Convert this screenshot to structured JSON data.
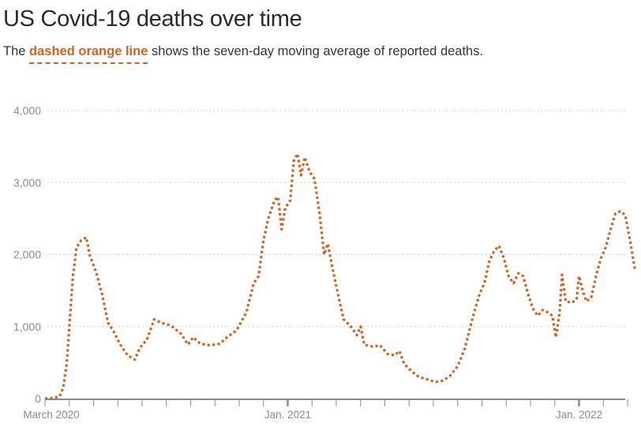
{
  "header": {
    "title": "US Covid-19 deaths over time",
    "subtitle_pre": "The ",
    "subtitle_highlight": "dashed orange line",
    "subtitle_post": " shows the seven-day moving average of reported deaths."
  },
  "colors": {
    "line": "#cc6424",
    "grid": "#cfcfcf",
    "axis": "#8a8a8a",
    "text": "#2a2a2a"
  },
  "chart_data": {
    "type": "line",
    "title": "US Covid-19 deaths over time",
    "subtitle": "The dashed orange line shows the seven-day moving average of reported deaths.",
    "xlabel": "",
    "ylabel": "",
    "ylim": [
      0,
      4000
    ],
    "yticks": [
      0,
      1000,
      2000,
      3000,
      4000
    ],
    "ytick_labels": [
      "0",
      "1,000",
      "2,000",
      "3,000",
      "4,000"
    ],
    "xtick_labels": [
      {
        "label": "March 2020",
        "month_index": 0
      },
      {
        "label": "Jan. 2021",
        "month_index": 10
      },
      {
        "label": "Jan. 2022",
        "month_index": 22
      }
    ],
    "x_minor_ticks": "monthly, March 2020 – Feb. 2022",
    "grid": {
      "horizontal": true,
      "style": "dotted"
    },
    "legend": "none (described in subtitle)",
    "series": [
      {
        "name": "Seven-day moving average of reported deaths",
        "style": "dashed",
        "color": "#cc6424",
        "points": [
          {
            "m": 0.0,
            "v": 0
          },
          {
            "m": 0.3,
            "v": 5
          },
          {
            "m": 0.6,
            "v": 30
          },
          {
            "m": 0.75,
            "v": 150
          },
          {
            "m": 0.9,
            "v": 500
          },
          {
            "m": 1.0,
            "v": 1000
          },
          {
            "m": 1.15,
            "v": 1700
          },
          {
            "m": 1.3,
            "v": 2100
          },
          {
            "m": 1.5,
            "v": 2200
          },
          {
            "m": 1.7,
            "v": 2240
          },
          {
            "m": 1.85,
            "v": 1980
          },
          {
            "m": 2.1,
            "v": 1760
          },
          {
            "m": 2.35,
            "v": 1450
          },
          {
            "m": 2.6,
            "v": 1050
          },
          {
            "m": 2.8,
            "v": 950
          },
          {
            "m": 3.1,
            "v": 750
          },
          {
            "m": 3.4,
            "v": 600
          },
          {
            "m": 3.7,
            "v": 540
          },
          {
            "m": 3.9,
            "v": 700
          },
          {
            "m": 4.2,
            "v": 820
          },
          {
            "m": 4.5,
            "v": 1100
          },
          {
            "m": 4.8,
            "v": 1050
          },
          {
            "m": 5.2,
            "v": 1010
          },
          {
            "m": 5.6,
            "v": 900
          },
          {
            "m": 5.9,
            "v": 750
          },
          {
            "m": 6.1,
            "v": 850
          },
          {
            "m": 6.4,
            "v": 760
          },
          {
            "m": 6.8,
            "v": 740
          },
          {
            "m": 7.2,
            "v": 760
          },
          {
            "m": 7.5,
            "v": 850
          },
          {
            "m": 7.9,
            "v": 950
          },
          {
            "m": 8.3,
            "v": 1200
          },
          {
            "m": 8.6,
            "v": 1600
          },
          {
            "m": 8.8,
            "v": 1700
          },
          {
            "m": 9.0,
            "v": 2200
          },
          {
            "m": 9.2,
            "v": 2500
          },
          {
            "m": 9.45,
            "v": 2750
          },
          {
            "m": 9.6,
            "v": 2800
          },
          {
            "m": 9.75,
            "v": 2350
          },
          {
            "m": 9.9,
            "v": 2650
          },
          {
            "m": 10.1,
            "v": 2750
          },
          {
            "m": 10.25,
            "v": 3300
          },
          {
            "m": 10.4,
            "v": 3400
          },
          {
            "m": 10.55,
            "v": 3100
          },
          {
            "m": 10.7,
            "v": 3350
          },
          {
            "m": 10.9,
            "v": 3150
          },
          {
            "m": 11.1,
            "v": 3050
          },
          {
            "m": 11.3,
            "v": 2600
          },
          {
            "m": 11.5,
            "v": 2000
          },
          {
            "m": 11.65,
            "v": 2150
          },
          {
            "m": 11.85,
            "v": 1800
          },
          {
            "m": 12.1,
            "v": 1400
          },
          {
            "m": 12.3,
            "v": 1100
          },
          {
            "m": 12.6,
            "v": 1000
          },
          {
            "m": 12.85,
            "v": 880
          },
          {
            "m": 13.0,
            "v": 1000
          },
          {
            "m": 13.15,
            "v": 750
          },
          {
            "m": 13.5,
            "v": 720
          },
          {
            "m": 13.8,
            "v": 740
          },
          {
            "m": 14.1,
            "v": 620
          },
          {
            "m": 14.4,
            "v": 600
          },
          {
            "m": 14.6,
            "v": 660
          },
          {
            "m": 14.8,
            "v": 480
          },
          {
            "m": 15.1,
            "v": 380
          },
          {
            "m": 15.4,
            "v": 300
          },
          {
            "m": 15.8,
            "v": 260
          },
          {
            "m": 16.1,
            "v": 230
          },
          {
            "m": 16.4,
            "v": 250
          },
          {
            "m": 16.7,
            "v": 320
          },
          {
            "m": 17.0,
            "v": 450
          },
          {
            "m": 17.3,
            "v": 700
          },
          {
            "m": 17.6,
            "v": 1100
          },
          {
            "m": 17.9,
            "v": 1450
          },
          {
            "m": 18.1,
            "v": 1600
          },
          {
            "m": 18.3,
            "v": 1900
          },
          {
            "m": 18.5,
            "v": 2050
          },
          {
            "m": 18.7,
            "v": 2120
          },
          {
            "m": 18.9,
            "v": 1950
          },
          {
            "m": 19.1,
            "v": 1700
          },
          {
            "m": 19.3,
            "v": 1600
          },
          {
            "m": 19.5,
            "v": 1740
          },
          {
            "m": 19.7,
            "v": 1700
          },
          {
            "m": 19.9,
            "v": 1450
          },
          {
            "m": 20.1,
            "v": 1250
          },
          {
            "m": 20.3,
            "v": 1150
          },
          {
            "m": 20.5,
            "v": 1230
          },
          {
            "m": 20.7,
            "v": 1200
          },
          {
            "m": 20.9,
            "v": 1150
          },
          {
            "m": 21.05,
            "v": 850
          },
          {
            "m": 21.2,
            "v": 1200
          },
          {
            "m": 21.3,
            "v": 1720
          },
          {
            "m": 21.45,
            "v": 1350
          },
          {
            "m": 21.7,
            "v": 1330
          },
          {
            "m": 21.9,
            "v": 1380
          },
          {
            "m": 22.0,
            "v": 1700
          },
          {
            "m": 22.15,
            "v": 1500
          },
          {
            "m": 22.3,
            "v": 1350
          },
          {
            "m": 22.5,
            "v": 1400
          },
          {
            "m": 22.7,
            "v": 1700
          },
          {
            "m": 22.9,
            "v": 1950
          },
          {
            "m": 23.1,
            "v": 2100
          },
          {
            "m": 23.3,
            "v": 2350
          },
          {
            "m": 23.5,
            "v": 2570
          },
          {
            "m": 23.7,
            "v": 2600
          },
          {
            "m": 23.9,
            "v": 2550
          },
          {
            "m": 24.1,
            "v": 2200
          },
          {
            "m": 24.3,
            "v": 1800
          }
        ]
      }
    ]
  }
}
